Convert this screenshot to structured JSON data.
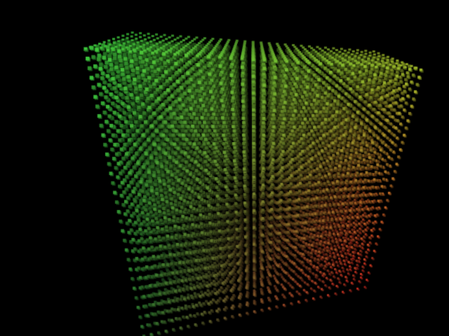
{
  "scene": {
    "subject": "cube-lattice",
    "background": "#000000",
    "colors": {
      "top_left": "#3cc83c",
      "top_right": "#9cb428",
      "bottom_right": "#c8281e",
      "bottom_left": "#2a6a2a"
    },
    "grid_divisions": 30
  }
}
